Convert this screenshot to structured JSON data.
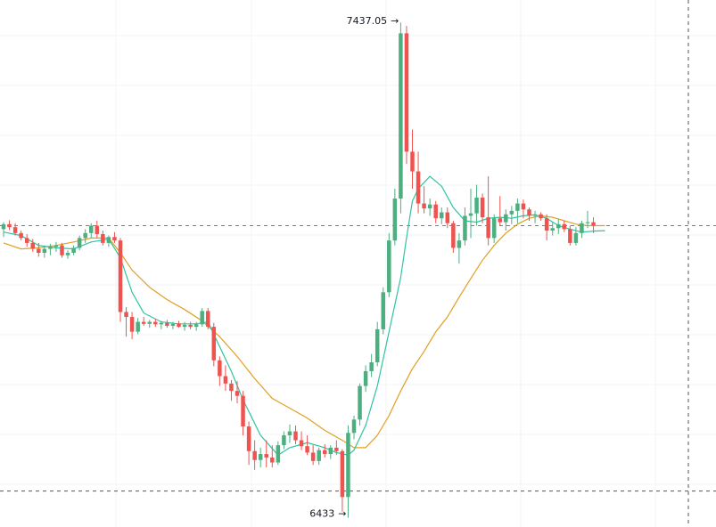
{
  "chart_data": {
    "type": "candlestick",
    "high_annotation": "7437.05",
    "low_annotation": "6433",
    "arrow_glyph": "→",
    "price_range": [
      6425,
      7450
    ],
    "colors": {
      "up": "#26a69a",
      "up_body": "#4caf80",
      "down": "#ef5350",
      "ma_fast": "#2ec4a0",
      "ma_slow": "#e0a020",
      "dashed_line": "#3a9e8c",
      "dashed_low": "#555555",
      "grid": "#f0f3f5"
    },
    "reference_lines": [
      {
        "price": 7025,
        "style": "dashed",
        "color_key": "dashed_line"
      },
      {
        "price": 6487,
        "style": "dashed",
        "color_key": "dashed_low"
      }
    ],
    "candles": [
      [
        7018,
        7032,
        7002,
        7028
      ],
      [
        7028,
        7036,
        7016,
        7022
      ],
      [
        7022,
        7030,
        7005,
        7010
      ],
      [
        7010,
        7015,
        6995,
        7000
      ],
      [
        7000,
        7008,
        6982,
        6990
      ],
      [
        6990,
        6998,
        6972,
        6978
      ],
      [
        6978,
        6990,
        6962,
        6970
      ],
      [
        6970,
        6985,
        6960,
        6978
      ],
      [
        6978,
        6988,
        6965,
        6982
      ],
      [
        6982,
        6992,
        6972,
        6985
      ],
      [
        6985,
        6990,
        6960,
        6965
      ],
      [
        6965,
        6975,
        6958,
        6970
      ],
      [
        6970,
        6985,
        6965,
        6980
      ],
      [
        6980,
        7005,
        6975,
        7000
      ],
      [
        7000,
        7018,
        6990,
        7010
      ],
      [
        7010,
        7030,
        7000,
        7025
      ],
      [
        7025,
        7035,
        7000,
        7008
      ],
      [
        7008,
        7015,
        6985,
        6990
      ],
      [
        6990,
        7005,
        6982,
        7002
      ],
      [
        7002,
        7012,
        6990,
        6995
      ],
      [
        6995,
        7000,
        6830,
        6850
      ],
      [
        6850,
        6860,
        6800,
        6840
      ],
      [
        6840,
        6850,
        6795,
        6810
      ],
      [
        6810,
        6838,
        6805,
        6830
      ],
      [
        6830,
        6840,
        6822,
        6826
      ],
      [
        6826,
        6834,
        6818,
        6830
      ],
      [
        6830,
        6836,
        6820,
        6825
      ],
      [
        6825,
        6832,
        6815,
        6828
      ],
      [
        6828,
        6834,
        6818,
        6822
      ],
      [
        6822,
        6830,
        6815,
        6826
      ],
      [
        6826,
        6832,
        6818,
        6820
      ],
      [
        6820,
        6830,
        6812,
        6824
      ],
      [
        6824,
        6830,
        6815,
        6820
      ],
      [
        6820,
        6830,
        6812,
        6825
      ],
      [
        6825,
        6858,
        6820,
        6852
      ],
      [
        6852,
        6858,
        6815,
        6820
      ],
      [
        6820,
        6828,
        6740,
        6752
      ],
      [
        6752,
        6760,
        6700,
        6720
      ],
      [
        6720,
        6742,
        6690,
        6705
      ],
      [
        6705,
        6712,
        6670,
        6690
      ],
      [
        6690,
        6710,
        6665,
        6680
      ],
      [
        6680,
        6690,
        6600,
        6618
      ],
      [
        6618,
        6628,
        6540,
        6568
      ],
      [
        6568,
        6590,
        6530,
        6550
      ],
      [
        6550,
        6575,
        6535,
        6562
      ],
      [
        6562,
        6590,
        6535,
        6555
      ],
      [
        6555,
        6580,
        6535,
        6545
      ],
      [
        6545,
        6588,
        6540,
        6580
      ],
      [
        6580,
        6608,
        6572,
        6600
      ],
      [
        6600,
        6622,
        6585,
        6608
      ],
      [
        6608,
        6620,
        6582,
        6590
      ],
      [
        6590,
        6608,
        6570,
        6578
      ],
      [
        6578,
        6600,
        6560,
        6565
      ],
      [
        6565,
        6580,
        6540,
        6548
      ],
      [
        6548,
        6575,
        6540,
        6570
      ],
      [
        6570,
        6582,
        6555,
        6562
      ],
      [
        6562,
        6580,
        6552,
        6575
      ],
      [
        6575,
        6590,
        6560,
        6568
      ],
      [
        6568,
        6572,
        6445,
        6475
      ],
      [
        6475,
        6620,
        6433,
        6605
      ],
      [
        6605,
        6640,
        6592,
        6632
      ],
      [
        6632,
        6705,
        6620,
        6700
      ],
      [
        6700,
        6742,
        6688,
        6730
      ],
      [
        6730,
        6765,
        6718,
        6748
      ],
      [
        6748,
        6830,
        6740,
        6815
      ],
      [
        6815,
        6900,
        6805,
        6890
      ],
      [
        6890,
        7010,
        6880,
        6995
      ],
      [
        6995,
        7100,
        6985,
        7080
      ],
      [
        7080,
        7437,
        7050,
        7415
      ],
      [
        7415,
        7430,
        7150,
        7175
      ],
      [
        7175,
        7220,
        7100,
        7135
      ],
      [
        7135,
        7175,
        7050,
        7070
      ],
      [
        7070,
        7105,
        7050,
        7060
      ],
      [
        7060,
        7080,
        7045,
        7068
      ],
      [
        7068,
        7075,
        7030,
        7040
      ],
      [
        7040,
        7062,
        7028,
        7052
      ],
      [
        7052,
        7062,
        7020,
        7030
      ],
      [
        7030,
        7035,
        6970,
        6980
      ],
      [
        6980,
        7010,
        6948,
        6995
      ],
      [
        6995,
        7062,
        6985,
        7045
      ],
      [
        7045,
        7100,
        7000,
        7050
      ],
      [
        7050,
        7108,
        7025,
        7082
      ],
      [
        7082,
        7090,
        7030,
        7042
      ],
      [
        7042,
        7125,
        6985,
        7000
      ],
      [
        7000,
        7048,
        6990,
        7040
      ],
      [
        7040,
        7085,
        7025,
        7032
      ],
      [
        7032,
        7058,
        7015,
        7048
      ],
      [
        7048,
        7065,
        7028,
        7055
      ],
      [
        7055,
        7080,
        7030,
        7070
      ],
      [
        7070,
        7078,
        7040,
        7058
      ],
      [
        7058,
        7062,
        7035,
        7045
      ],
      [
        7045,
        7055,
        7030,
        7048
      ],
      [
        7048,
        7052,
        7035,
        7040
      ],
      [
        7040,
        7048,
        6995,
        7015
      ],
      [
        7015,
        7032,
        7005,
        7020
      ],
      [
        7020,
        7038,
        7008,
        7028
      ],
      [
        7028,
        7035,
        7012,
        7018
      ],
      [
        7018,
        7025,
        6985,
        6990
      ],
      [
        6990,
        7022,
        6985,
        7010
      ],
      [
        7010,
        7035,
        7000,
        7030
      ],
      [
        7030,
        7055,
        7020,
        7032
      ],
      [
        7032,
        7042,
        7010,
        7025
      ]
    ],
    "ma_fast": [
      [
        0,
        7012
      ],
      [
        3,
        7005
      ],
      [
        6,
        6985
      ],
      [
        9,
        6980
      ],
      [
        12,
        6978
      ],
      [
        15,
        6992
      ],
      [
        18,
        6998
      ],
      [
        20,
        6960
      ],
      [
        22,
        6890
      ],
      [
        24,
        6848
      ],
      [
        27,
        6830
      ],
      [
        30,
        6826
      ],
      [
        33,
        6826
      ],
      [
        35,
        6830
      ],
      [
        37,
        6780
      ],
      [
        39,
        6730
      ],
      [
        41,
        6672
      ],
      [
        44,
        6600
      ],
      [
        47,
        6560
      ],
      [
        49,
        6575
      ],
      [
        52,
        6585
      ],
      [
        55,
        6575
      ],
      [
        57,
        6565
      ],
      [
        59,
        6560
      ],
      [
        60,
        6570
      ],
      [
        62,
        6620
      ],
      [
        64,
        6700
      ],
      [
        66,
        6810
      ],
      [
        68,
        6920
      ],
      [
        69,
        7000
      ],
      [
        70,
        7075
      ],
      [
        71,
        7100
      ],
      [
        73,
        7125
      ],
      [
        75,
        7105
      ],
      [
        77,
        7062
      ],
      [
        79,
        7035
      ],
      [
        81,
        7032
      ],
      [
        83,
        7040
      ],
      [
        85,
        7042
      ],
      [
        87,
        7040
      ],
      [
        89,
        7045
      ],
      [
        91,
        7047
      ],
      [
        93,
        7040
      ],
      [
        95,
        7025
      ],
      [
        97,
        7018
      ],
      [
        99,
        7012
      ],
      [
        101,
        7014
      ],
      [
        103,
        7015
      ]
    ],
    "ma_slow": [
      [
        0,
        6990
      ],
      [
        3,
        6978
      ],
      [
        6,
        6980
      ],
      [
        9,
        6985
      ],
      [
        12,
        6992
      ],
      [
        15,
        7000
      ],
      [
        18,
        7000
      ],
      [
        20,
        6970
      ],
      [
        22,
        6935
      ],
      [
        25,
        6900
      ],
      [
        28,
        6875
      ],
      [
        31,
        6855
      ],
      [
        34,
        6832
      ],
      [
        37,
        6800
      ],
      [
        40,
        6760
      ],
      [
        43,
        6715
      ],
      [
        46,
        6675
      ],
      [
        49,
        6655
      ],
      [
        52,
        6635
      ],
      [
        55,
        6610
      ],
      [
        58,
        6590
      ],
      [
        60,
        6575
      ],
      [
        62,
        6575
      ],
      [
        64,
        6600
      ],
      [
        66,
        6640
      ],
      [
        68,
        6690
      ],
      [
        70,
        6735
      ],
      [
        72,
        6770
      ],
      [
        74,
        6810
      ],
      [
        76,
        6840
      ],
      [
        78,
        6880
      ],
      [
        80,
        6918
      ],
      [
        82,
        6955
      ],
      [
        84,
        6985
      ],
      [
        86,
        7010
      ],
      [
        88,
        7028
      ],
      [
        90,
        7040
      ],
      [
        92,
        7045
      ],
      [
        94,
        7042
      ],
      [
        96,
        7035
      ],
      [
        98,
        7028
      ],
      [
        100,
        7025
      ],
      [
        103,
        7025
      ]
    ]
  }
}
